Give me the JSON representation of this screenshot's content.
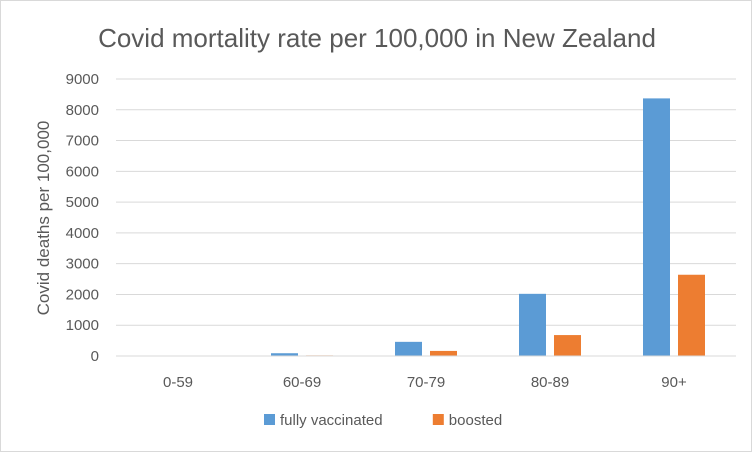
{
  "chart_data": {
    "type": "bar",
    "title": "Covid mortality rate per 100,000 in New Zealand",
    "xlabel": "",
    "ylabel": "Covid deaths per 100,000",
    "categories": [
      "0-59",
      "60-69",
      "70-79",
      "80-89",
      "90+"
    ],
    "series": [
      {
        "name": "fully vaccinated",
        "color": "#5b9bd5",
        "values": [
          5,
          90,
          460,
          2020,
          8370
        ]
      },
      {
        "name": "boosted",
        "color": "#ed7d31",
        "values": [
          2,
          20,
          165,
          680,
          2640
        ]
      }
    ],
    "ylim": [
      0,
      9000
    ],
    "yticks": [
      "0",
      "1000",
      "2000",
      "3000",
      "4000",
      "5000",
      "6000",
      "7000",
      "8000",
      "9000"
    ],
    "grid": true,
    "legend_position": "bottom"
  }
}
